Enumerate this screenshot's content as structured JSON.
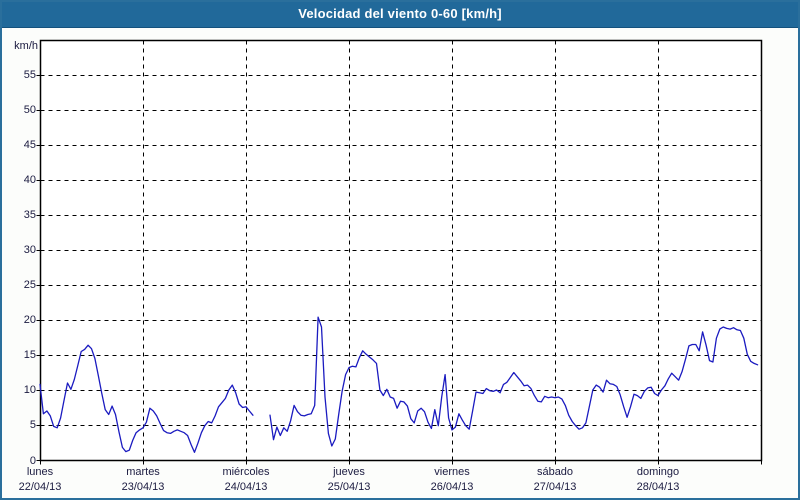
{
  "window": {
    "title": "Velocidad del viento 0-60 [km/h]"
  },
  "colors": {
    "title_bar": "#21699a",
    "title_bar_edge": "#14517d",
    "title_text": "#ffffff",
    "frame_border": "#2a6f9c",
    "background": "#fcfdfb",
    "plot_background": "#ffffff",
    "line": "#1b1bc0",
    "grid": "#000000",
    "plot_border": "#000000",
    "label_text": "#1b1b40"
  },
  "chart_data": {
    "type": "line",
    "title": "Velocidad del viento 0-60 [km/h]",
    "y_unit_label": "km/h",
    "ylabel": "km/h",
    "xlabel": "",
    "ylim": [
      0,
      60
    ],
    "y_ticks": [
      0,
      5,
      10,
      15,
      20,
      25,
      30,
      35,
      40,
      45,
      50,
      55
    ],
    "grid": "dashed",
    "legend": "none",
    "x_days": [
      {
        "name": "lunes",
        "date": "22/04/13"
      },
      {
        "name": "martes",
        "date": "23/04/13"
      },
      {
        "name": "miércoles",
        "date": "24/04/13"
      },
      {
        "name": "jueves",
        "date": "25/04/13"
      },
      {
        "name": "viernes",
        "date": "26/04/13"
      },
      {
        "name": "sábado",
        "date": "27/04/13"
      },
      {
        "name": "domingo",
        "date": "28/04/13"
      }
    ],
    "samples_per_day": 30,
    "series": [
      {
        "name": "velocidad del viento [km/h]",
        "values": [
          10.8,
          6.6,
          7.0,
          6.3,
          4.8,
          4.6,
          6.0,
          8.5,
          11.0,
          10.1,
          11.5,
          13.5,
          15.5,
          15.8,
          16.4,
          15.9,
          14.5,
          12.0,
          9.5,
          7.2,
          6.5,
          7.7,
          6.5,
          4.0,
          1.8,
          1.2,
          1.4,
          2.8,
          3.9,
          4.3,
          4.6,
          5.4,
          7.4,
          7.0,
          6.3,
          5.2,
          4.2,
          3.9,
          3.8,
          4.1,
          4.3,
          4.1,
          3.9,
          3.5,
          2.2,
          1.1,
          2.4,
          3.9,
          4.9,
          5.5,
          5.3,
          6.3,
          7.6,
          8.2,
          8.8,
          10.0,
          10.7,
          9.6,
          8.0,
          7.5,
          7.6,
          7.0,
          6.4,
          null,
          null,
          null,
          null,
          6.4,
          2.9,
          4.7,
          3.5,
          4.6,
          4.1,
          5.6,
          7.8,
          6.9,
          6.4,
          6.3,
          6.5,
          6.6,
          7.8,
          20.4,
          19.0,
          9.0,
          3.8,
          2.0,
          3.0,
          6.5,
          9.8,
          12.2,
          13.2,
          13.4,
          13.3,
          14.6,
          15.6,
          15.1,
          14.7,
          14.3,
          13.8,
          10.0,
          9.2,
          10.1,
          9.0,
          8.8,
          7.4,
          8.4,
          8.3,
          7.7,
          5.9,
          5.3,
          7.0,
          7.4,
          6.9,
          5.4,
          4.5,
          7.2,
          4.9,
          9.0,
          12.2,
          6.0,
          4.3,
          4.7,
          6.6,
          5.7,
          4.9,
          4.4,
          7.0,
          9.7,
          9.6,
          9.5,
          10.2,
          9.9,
          9.8,
          10.0,
          9.6,
          10.8,
          11.1,
          11.8,
          12.5,
          11.9,
          11.3,
          10.6,
          10.7,
          10.2,
          9.2,
          8.4,
          8.3,
          9.1,
          8.9,
          9.0,
          8.9,
          9.0,
          8.7,
          7.8,
          6.4,
          5.5,
          4.9,
          4.4,
          4.6,
          5.3,
          7.6,
          10.0,
          10.7,
          10.4,
          9.7,
          11.4,
          10.9,
          10.8,
          10.5,
          9.3,
          7.6,
          6.1,
          7.6,
          9.4,
          9.2,
          8.8,
          9.8,
          10.3,
          10.4,
          9.5,
          9.2,
          10.0,
          10.6,
          11.6,
          12.4,
          11.9,
          11.4,
          12.6,
          14.4,
          16.3,
          16.5,
          16.5,
          15.6,
          18.3,
          16.4,
          14.2,
          14.0,
          17.4,
          18.7,
          19.0,
          18.8,
          18.7,
          18.9,
          18.6,
          18.5,
          17.4,
          15.1,
          14.1,
          13.8,
          13.6
        ]
      }
    ]
  }
}
